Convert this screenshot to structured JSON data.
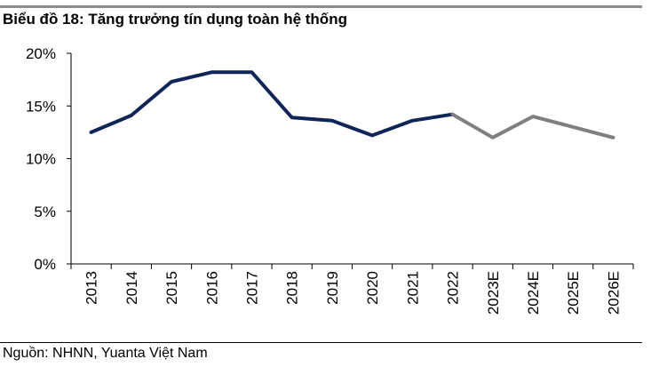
{
  "title": "Biểu đồ 18: Tăng trưởng tín dụng toàn hệ thống",
  "source": "Nguồn: NHNN, Yuanta Việt Nam",
  "chart_data": {
    "type": "line",
    "title": "Biểu đồ 18: Tăng trưởng tín dụng toàn hệ thống",
    "xlabel": "",
    "ylabel": "",
    "categories": [
      "2013",
      "2014",
      "2015",
      "2016",
      "2017",
      "2018",
      "2019",
      "2020",
      "2021",
      "2022",
      "2023E",
      "2024E",
      "2025E",
      "2026E"
    ],
    "yticks": [
      "0%",
      "5%",
      "10%",
      "15%",
      "20%"
    ],
    "ylim": [
      0,
      20
    ],
    "grid": false,
    "legend": "none",
    "series": [
      {
        "color": "#0f2557",
        "values": [
          12.5,
          14.1,
          17.3,
          18.2,
          18.2,
          13.9,
          13.6,
          12.2,
          13.6,
          14.2,
          null,
          null,
          null,
          null
        ]
      },
      {
        "color": "#7f7f7f",
        "values": [
          null,
          null,
          null,
          null,
          null,
          null,
          null,
          null,
          null,
          14.2,
          12.0,
          14.0,
          13.0,
          12.0
        ]
      }
    ]
  }
}
